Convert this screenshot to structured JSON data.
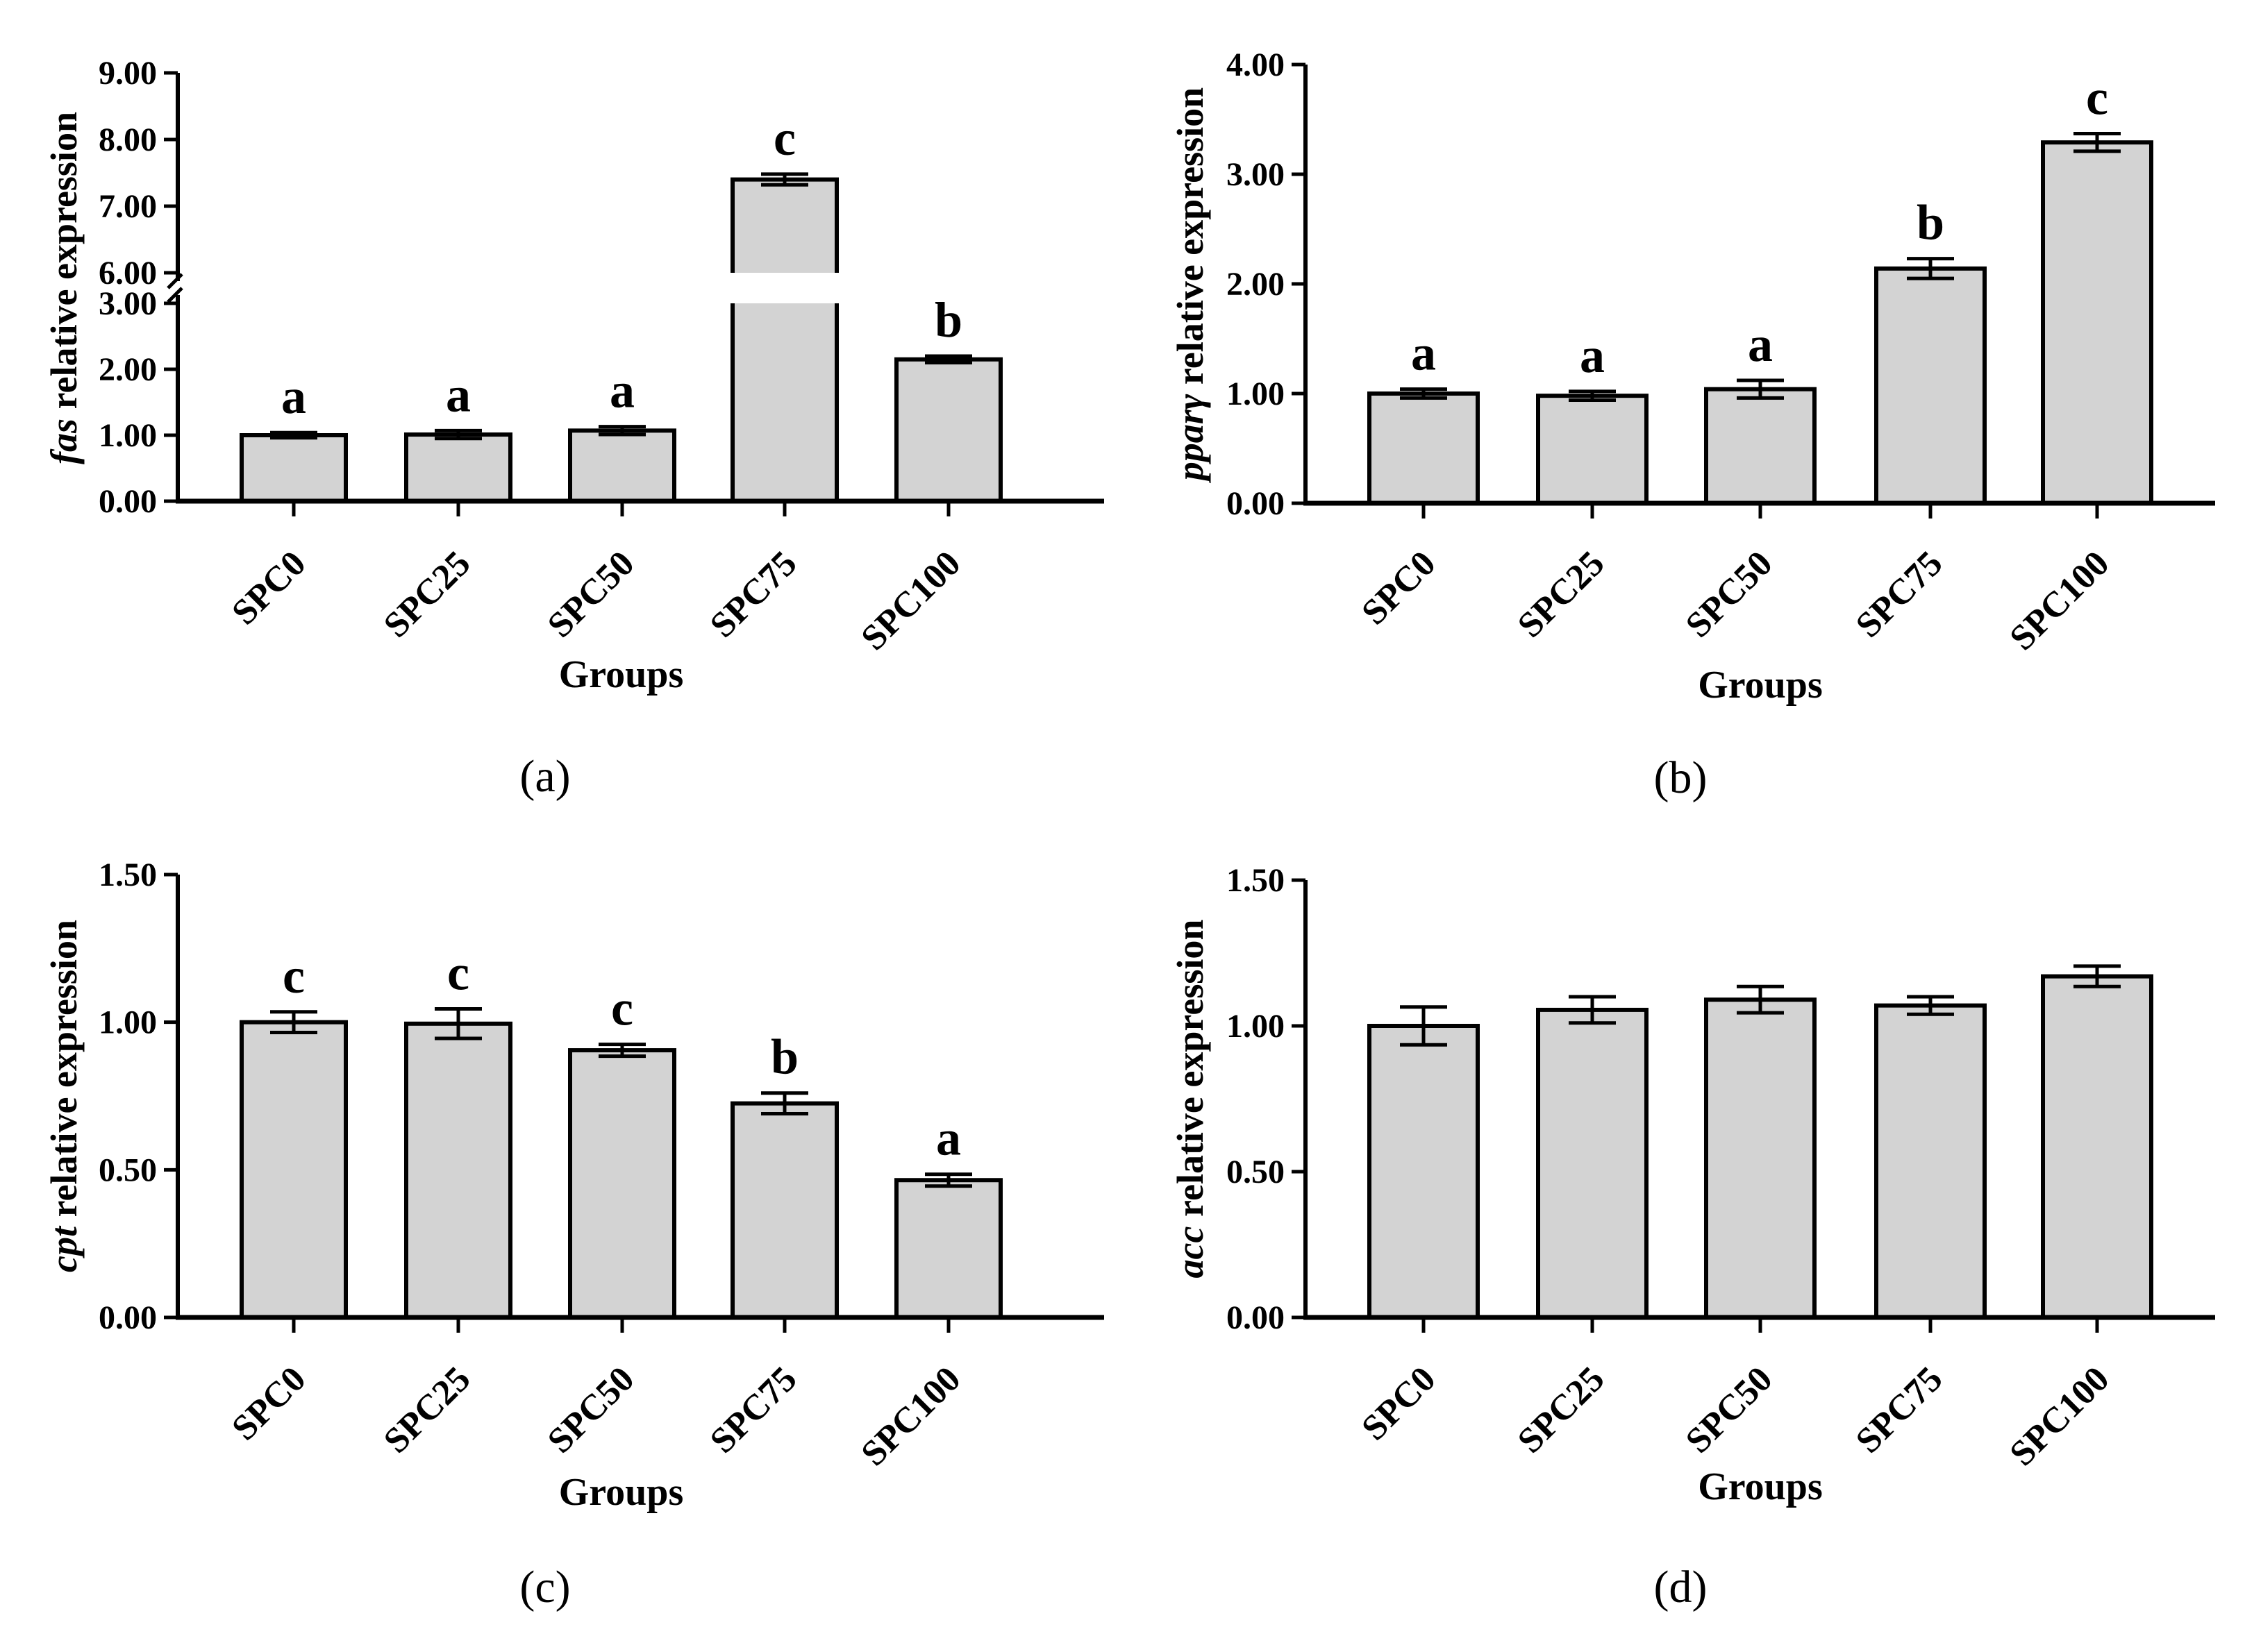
{
  "chart_data": [
    {
      "type": "bar",
      "panel_label": "(a)",
      "gene": "fas",
      "ylabel_suffix": " relative expression",
      "xlabel": "Groups",
      "categories": [
        "SPC0",
        "SPC25",
        "SPC50",
        "SPC75",
        "SPC100"
      ],
      "values": [
        1.0,
        1.01,
        1.07,
        7.4,
        2.15
      ],
      "errors": [
        0.04,
        0.06,
        0.06,
        0.08,
        0.05
      ],
      "significance": [
        "a",
        "a",
        "a",
        "c",
        "b"
      ],
      "axis_break": {
        "lower": [
          0,
          3
        ],
        "upper": [
          6,
          9
        ]
      },
      "yticks_lower": [
        "0.00",
        "1.00",
        "2.00",
        "3.00"
      ],
      "yticks_upper": [
        "6.00",
        "7.00",
        "8.00",
        "9.00"
      ]
    },
    {
      "type": "bar",
      "panel_label": "(b)",
      "gene": "pparγ",
      "ylabel_suffix": " relative expression",
      "xlabel": "Groups",
      "categories": [
        "SPC0",
        "SPC25",
        "SPC50",
        "SPC75",
        "SPC100"
      ],
      "values": [
        1.0,
        0.98,
        1.04,
        2.14,
        3.29
      ],
      "errors": [
        0.04,
        0.04,
        0.08,
        0.09,
        0.08
      ],
      "significance": [
        "a",
        "a",
        "a",
        "b",
        "c"
      ],
      "ylim": [
        0,
        4
      ],
      "yticks": [
        "0.00",
        "1.00",
        "2.00",
        "3.00",
        "4.00"
      ]
    },
    {
      "type": "bar",
      "panel_label": "(c)",
      "gene": "cpt",
      "ylabel_suffix": " relative expression",
      "xlabel": "Groups",
      "categories": [
        "SPC0",
        "SPC25",
        "SPC50",
        "SPC75",
        "SPC100"
      ],
      "values": [
        1.0,
        0.995,
        0.905,
        0.725,
        0.465
      ],
      "errors": [
        0.035,
        0.05,
        0.02,
        0.035,
        0.02
      ],
      "significance": [
        "c",
        "c",
        "c",
        "b",
        "a"
      ],
      "ylim": [
        0,
        1.5
      ],
      "yticks": [
        "0.00",
        "0.50",
        "1.00",
        "1.50"
      ]
    },
    {
      "type": "bar",
      "panel_label": "(d)",
      "gene": "acc",
      "ylabel_suffix": " relative expression",
      "xlabel": "Groups",
      "categories": [
        "SPC0",
        "SPC25",
        "SPC50",
        "SPC75",
        "SPC100"
      ],
      "values": [
        1.0,
        1.055,
        1.09,
        1.07,
        1.17
      ],
      "errors": [
        0.065,
        0.045,
        0.045,
        0.03,
        0.035
      ],
      "significance": [
        "",
        "",
        "",
        "",
        ""
      ],
      "ylim": [
        0,
        1.5
      ],
      "yticks": [
        "0.00",
        "0.50",
        "1.00",
        "1.50"
      ]
    }
  ],
  "colors": {
    "bar_fill": "#d3d3d3",
    "stroke": "#000000",
    "background": "#ffffff"
  }
}
